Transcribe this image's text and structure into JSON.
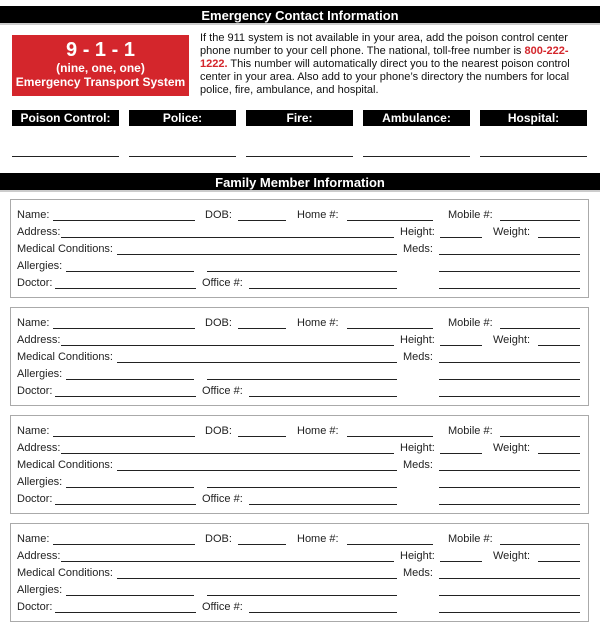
{
  "header": {
    "title": "Emergency Contact Information"
  },
  "emergency_box": {
    "number": "9 - 1 - 1",
    "spoken": "(nine, one, one)",
    "system": "Emergency Transport System"
  },
  "intro": {
    "before": "If the 911 system is not available in your area, add the poison control center phone number to your cell phone. The national, toll-free number is ",
    "phone": "800-222-1222.",
    "after": " This number will automatically direct you to the nearest poison control center in your area. Also add to your phone’s directory the numbers for local police, fire, ambulance, and hospital."
  },
  "contacts": [
    "Poison Control:",
    "Police:",
    "Fire:",
    "Ambulance:",
    "Hospital:"
  ],
  "family": {
    "title": "Family Member Information",
    "count": 4,
    "labels": {
      "name": "Name:",
      "dob": "DOB:",
      "home": "Home #:",
      "mobile": "Mobile #:",
      "address": "Address:",
      "height": "Height:",
      "weight": "Weight:",
      "medical": "Medical Conditions:",
      "meds": "Meds:",
      "allergies": "Allergies:",
      "doctor": "Doctor:",
      "office": "Office #:"
    }
  }
}
